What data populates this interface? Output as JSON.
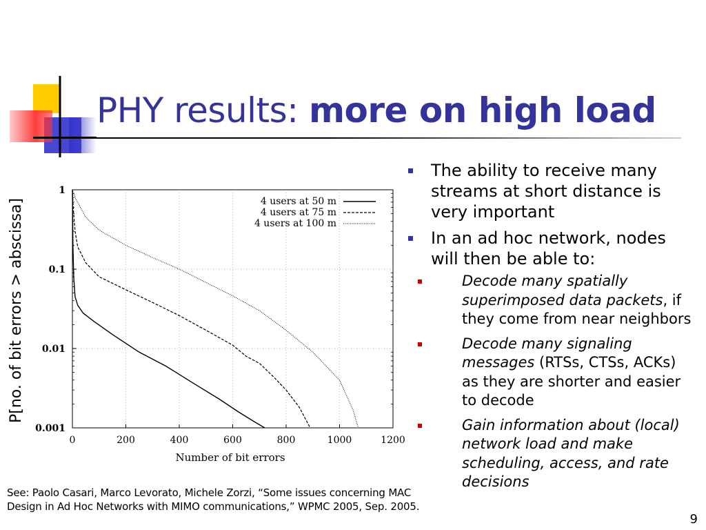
{
  "slide": {
    "title_regular": "PHY results: ",
    "title_bold": "more on high load",
    "page_number": "9",
    "footnote_line1": "See: Paolo Casari, Marco Levorato, Michele Zorzi, “Some issues concerning MAC",
    "footnote_line2": "Design in Ad Hoc Networks with MIMO communications,” WPMC 2005, Sep. 2005.",
    "colors": {
      "title": "#333399",
      "bullet_l1": "#333399",
      "bullet_l2": "#cc0000",
      "logo_yellow": "#ffcc00",
      "logo_blue": "#3333cc",
      "logo_red": "#ff3333"
    }
  },
  "bullets": [
    {
      "text": "The ability to receive many streams at short distance is very important"
    },
    {
      "text": "In an ad hoc network, nodes will then be able to:"
    }
  ],
  "sub_bullets": [
    {
      "italic": "Decode many spatially superimposed data packets",
      "normal": ", if they come from near neighbors"
    },
    {
      "italic": "Decode many signaling messages",
      "normal": " (RTSs, CTSs, ACKs) as they are shorter and easier to decode"
    },
    {
      "italic": "Gain information about (local) network load and make scheduling, access, and rate decisions",
      "normal": ""
    }
  ],
  "chart_data": {
    "type": "line",
    "title": "",
    "xlabel": "Number of bit errors",
    "ylabel": "P[no. of bit errors > abscissa]",
    "xlim": [
      0,
      1200
    ],
    "ylim": [
      0.001,
      1
    ],
    "y_scale": "log",
    "grid": true,
    "legend_position": "top-right",
    "x_ticks": [
      "0",
      "200",
      "400",
      "600",
      "800",
      "1000",
      "1200"
    ],
    "y_ticks": [
      {
        "value": 1,
        "label": "1"
      },
      {
        "value": 0.1,
        "label": "0.1"
      },
      {
        "value": 0.01,
        "label": "0.01"
      },
      {
        "value": 0.001,
        "label": "0.001"
      }
    ],
    "series": [
      {
        "name": "4 users at 50 m",
        "style": "solid",
        "x": [
          0,
          2,
          5,
          10,
          20,
          40,
          80,
          150,
          250,
          350,
          450,
          550,
          620,
          680,
          720
        ],
        "y": [
          1,
          0.2,
          0.08,
          0.045,
          0.035,
          0.028,
          0.022,
          0.015,
          0.009,
          0.006,
          0.0037,
          0.0023,
          0.0016,
          0.0012,
          0.001
        ]
      },
      {
        "name": "4 users at 75 m",
        "style": "dashed",
        "x": [
          0,
          3,
          10,
          20,
          50,
          100,
          200,
          300,
          400,
          500,
          600,
          650,
          700,
          750,
          800,
          850,
          890
        ],
        "y": [
          1,
          0.6,
          0.3,
          0.19,
          0.12,
          0.08,
          0.055,
          0.038,
          0.026,
          0.017,
          0.011,
          0.008,
          0.0065,
          0.0045,
          0.003,
          0.0018,
          0.001
        ]
      },
      {
        "name": "4 users at 100 m",
        "style": "dotted",
        "x": [
          0,
          10,
          50,
          100,
          200,
          300,
          400,
          500,
          600,
          700,
          800,
          900,
          950,
          1000,
          1050,
          1070
        ],
        "y": [
          1,
          0.8,
          0.45,
          0.31,
          0.2,
          0.14,
          0.1,
          0.068,
          0.046,
          0.03,
          0.017,
          0.009,
          0.006,
          0.004,
          0.0017,
          0.001
        ]
      }
    ]
  }
}
